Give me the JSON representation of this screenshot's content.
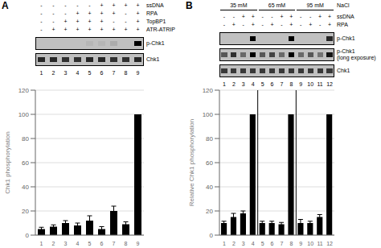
{
  "chart_data": [
    {
      "type": "bar",
      "title": "A",
      "ylabel": "Chk1 phosphorylation",
      "categories": [
        "1",
        "2",
        "3",
        "4",
        "5",
        "6",
        "7",
        "8",
        "9"
      ],
      "values": [
        5,
        7,
        10,
        8,
        12,
        5,
        20,
        9,
        100
      ],
      "errors": [
        1.5,
        1.5,
        2,
        2,
        4,
        2,
        4,
        2,
        0
      ],
      "color": "#000000",
      "ylim": [
        0,
        120
      ],
      "yticks": [
        0,
        20,
        40,
        60,
        80,
        100,
        120
      ],
      "grid": true,
      "conditions": {
        "labels": [
          "ssDNA",
          "RPA",
          "TopBP1",
          "ATR-ATRIP"
        ],
        "per_lane": [
          [
            "-",
            "-",
            "-",
            "-"
          ],
          [
            "-",
            "-",
            "-",
            "+"
          ],
          [
            "-",
            "-",
            "+",
            "+"
          ],
          [
            "-",
            "+",
            "+",
            "+"
          ],
          [
            "-",
            "+",
            "+",
            "+"
          ],
          [
            "+",
            "+",
            "+",
            "+"
          ],
          [
            "+",
            "+",
            "-",
            "+"
          ],
          [
            "+",
            "-",
            "-",
            "+"
          ],
          [
            "+",
            "+",
            "+",
            "+"
          ]
        ]
      },
      "gel_rows": [
        {
          "name": "p-Chk1",
          "intensities": [
            0.0,
            0.0,
            0.0,
            0.0,
            0.05,
            0.05,
            0.1,
            0.0,
            1.0
          ]
        },
        {
          "name": "Chk1",
          "intensities": [
            0.8,
            0.8,
            0.75,
            0.75,
            0.8,
            0.8,
            0.75,
            0.75,
            0.8
          ]
        }
      ]
    },
    {
      "type": "bar",
      "title": "B",
      "ylabel": "Relative Chk1 phosphorylation",
      "categories": [
        "1",
        "2",
        "3",
        "4",
        "5",
        "6",
        "7",
        "8",
        "9",
        "10",
        "11",
        "12"
      ],
      "values": [
        10,
        15,
        18,
        100,
        10,
        10,
        9,
        100,
        10,
        10,
        15,
        100
      ],
      "errors": [
        1.5,
        3,
        2,
        0,
        1.5,
        1.5,
        1.5,
        0,
        3,
        1.5,
        2,
        0
      ],
      "color": "#000000",
      "ylim": [
        0,
        120
      ],
      "yticks": [
        0,
        20,
        40,
        60,
        80,
        100,
        120
      ],
      "grid": true,
      "dividers": [
        4,
        8
      ],
      "group_labels": [
        "35 mM",
        "65 mM",
        "95 mM"
      ],
      "group_title": "NaCl",
      "conditions": {
        "labels": [
          "ssDNA",
          "RPA"
        ],
        "per_lane": [
          [
            "-",
            "-"
          ],
          [
            "-",
            "+"
          ],
          [
            "+",
            "-"
          ],
          [
            "+",
            "+"
          ],
          [
            "-",
            "-"
          ],
          [
            "-",
            "+"
          ],
          [
            "+",
            "-"
          ],
          [
            "+",
            "+"
          ],
          [
            "-",
            "-"
          ],
          [
            "-",
            "+"
          ],
          [
            "+",
            "-"
          ],
          [
            "+",
            "+"
          ]
        ]
      },
      "gel_rows": [
        {
          "name": "p-Chk1",
          "intensities": [
            0.0,
            0.0,
            0.0,
            1.0,
            0.0,
            0.0,
            0.0,
            1.0,
            0.0,
            0.0,
            0.0,
            0.8
          ]
        },
        {
          "name": "p-Chk1\n(long exposure)",
          "intensities": [
            0.55,
            0.75,
            0.45,
            1.0,
            0.55,
            0.65,
            0.45,
            1.0,
            0.45,
            0.55,
            0.4,
            0.9
          ]
        },
        {
          "name": "Chk1",
          "intensities": [
            0.7,
            0.7,
            0.7,
            0.7,
            0.7,
            0.7,
            0.7,
            0.7,
            0.7,
            0.7,
            0.7,
            0.7
          ]
        }
      ]
    }
  ]
}
